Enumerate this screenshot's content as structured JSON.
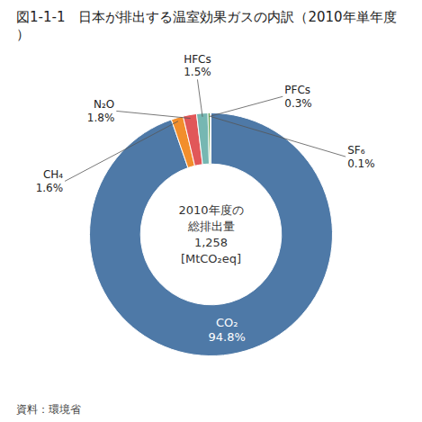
{
  "chart_data": {
    "type": "pie",
    "title": "図1-1-1　日本が排出する温室効果ガスの内訳（2010年単年度）",
    "categories": [
      "CO₂",
      "CH₄",
      "N₂O",
      "HFCs",
      "PFCs",
      "SF₆"
    ],
    "values": [
      94.8,
      1.6,
      1.8,
      1.5,
      0.3,
      0.1
    ],
    "value_labels": [
      "94.8%",
      "1.6%",
      "1.8%",
      "1.5%",
      "0.3%",
      "0.1%"
    ],
    "data_labels": true,
    "annotations": [
      "2010年度の",
      "総排出量",
      "1,258",
      "[MtCO₂eq]"
    ],
    "source": "資料：環境省"
  }
}
